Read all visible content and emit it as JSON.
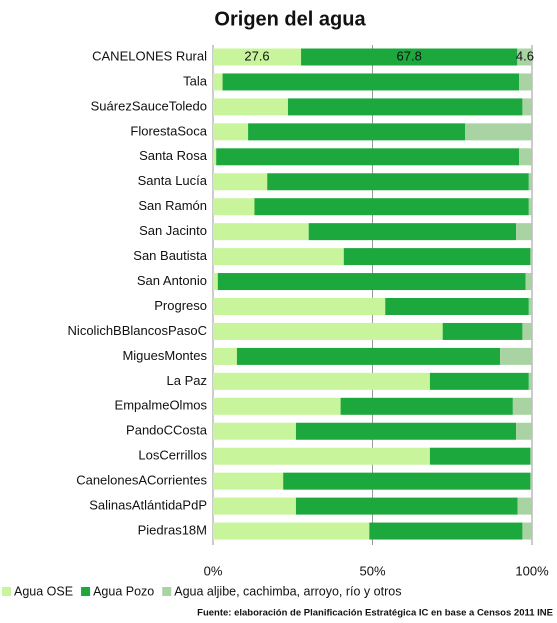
{
  "chart_data": {
    "type": "stacked_barh",
    "title": "Origen del agua",
    "categories": [
      "CANELONES Rural",
      "Tala",
      "SuárezSauceToledo",
      "FlorestaSoca",
      "Santa Rosa",
      "Santa Lucía",
      "San Ramón",
      "San Jacinto",
      "San Bautista",
      "San Antonio",
      "Progreso",
      "NicolichBBlancosPasoC",
      "MiguesMontes",
      "La Paz",
      "EmpalmeOlmos",
      "PandoCCosta",
      "LosCerrillos",
      "CanelonesACorrientes",
      "SalinasAtlántidaPdP",
      "Piedras18M"
    ],
    "series": [
      {
        "name": "Agua OSE",
        "color": "#c8f59c",
        "values": [
          27.6,
          3,
          23.5,
          11,
          1,
          17,
          13,
          30,
          41,
          1.5,
          54,
          72,
          7.5,
          68,
          40,
          26,
          68,
          22,
          26,
          49
        ]
      },
      {
        "name": "Agua Pozo",
        "color": "#1ca83c",
        "values": [
          67.8,
          93,
          73.5,
          68,
          95,
          82,
          86,
          65,
          58.5,
          96.5,
          45,
          25,
          82.5,
          31,
          54,
          69,
          31.5,
          77.5,
          69.5,
          48
        ]
      },
      {
        "name": "Agua aljibe, cachimba, arroyo, río y otros",
        "color": "#a9d3a3",
        "values": [
          4.6,
          4,
          3,
          21,
          4,
          1,
          1,
          5,
          0.5,
          2,
          1,
          3,
          10,
          1,
          6,
          5,
          0.5,
          0.5,
          4.5,
          3
        ]
      }
    ],
    "xlim": [
      0,
      100
    ],
    "xticks": [
      {
        "value": 0,
        "label": "0%"
      },
      {
        "value": 50,
        "label": "50%"
      },
      {
        "value": 100,
        "label": "100%"
      }
    ],
    "grid": true,
    "legend": "bottom",
    "source": "Fuente: elaboración de Planificación Estratégica IC en base a Censos 2011 INE"
  }
}
